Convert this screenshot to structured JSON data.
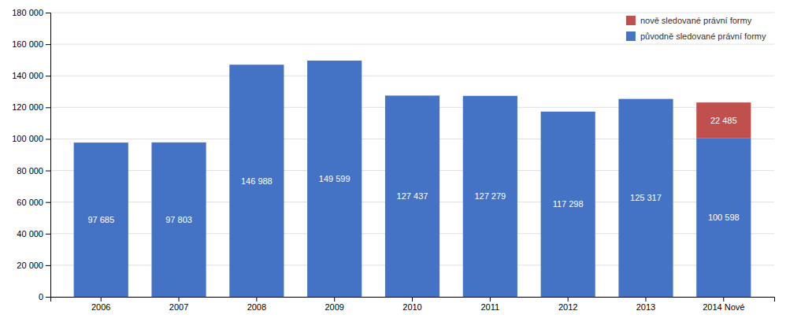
{
  "chart_data": {
    "type": "bar",
    "stacked": true,
    "categories": [
      "2006",
      "2007",
      "2008",
      "2009",
      "2010",
      "2011",
      "2012",
      "2013",
      "2014 Nové"
    ],
    "series": [
      {
        "name": "původně sledované právní formy",
        "color": "#4472C4",
        "values": [
          97685,
          97803,
          146988,
          149599,
          127437,
          127279,
          117298,
          125317,
          100598
        ],
        "value_labels": [
          "97 685",
          "97 803",
          "146 988",
          "149 599",
          "127 437",
          "127 279",
          "117 298",
          "125 317",
          "100 598"
        ]
      },
      {
        "name": "nově sledované právní formy",
        "color": "#C0504D",
        "values": [
          0,
          0,
          0,
          0,
          0,
          0,
          0,
          0,
          22485
        ],
        "value_labels": [
          null,
          null,
          null,
          null,
          null,
          null,
          null,
          null,
          "22 485"
        ]
      }
    ],
    "data_labels": true,
    "ylim": [
      0,
      180000
    ],
    "yticks": [
      0,
      {
        "value": 20000,
        "label": "20 000"
      },
      {
        "value": 40000,
        "label": "40 000"
      },
      {
        "value": 60000,
        "label": "60 000"
      },
      {
        "value": 80000,
        "label": "80 000"
      },
      {
        "value": 100000,
        "label": "100 000"
      },
      {
        "value": 120000,
        "label": "120 000"
      },
      {
        "value": 140000,
        "label": "140 000"
      },
      {
        "value": 160000,
        "label": "160 000"
      },
      {
        "value": 180000,
        "label": "180 000"
      }
    ],
    "grid": true,
    "legend": "upper right"
  }
}
